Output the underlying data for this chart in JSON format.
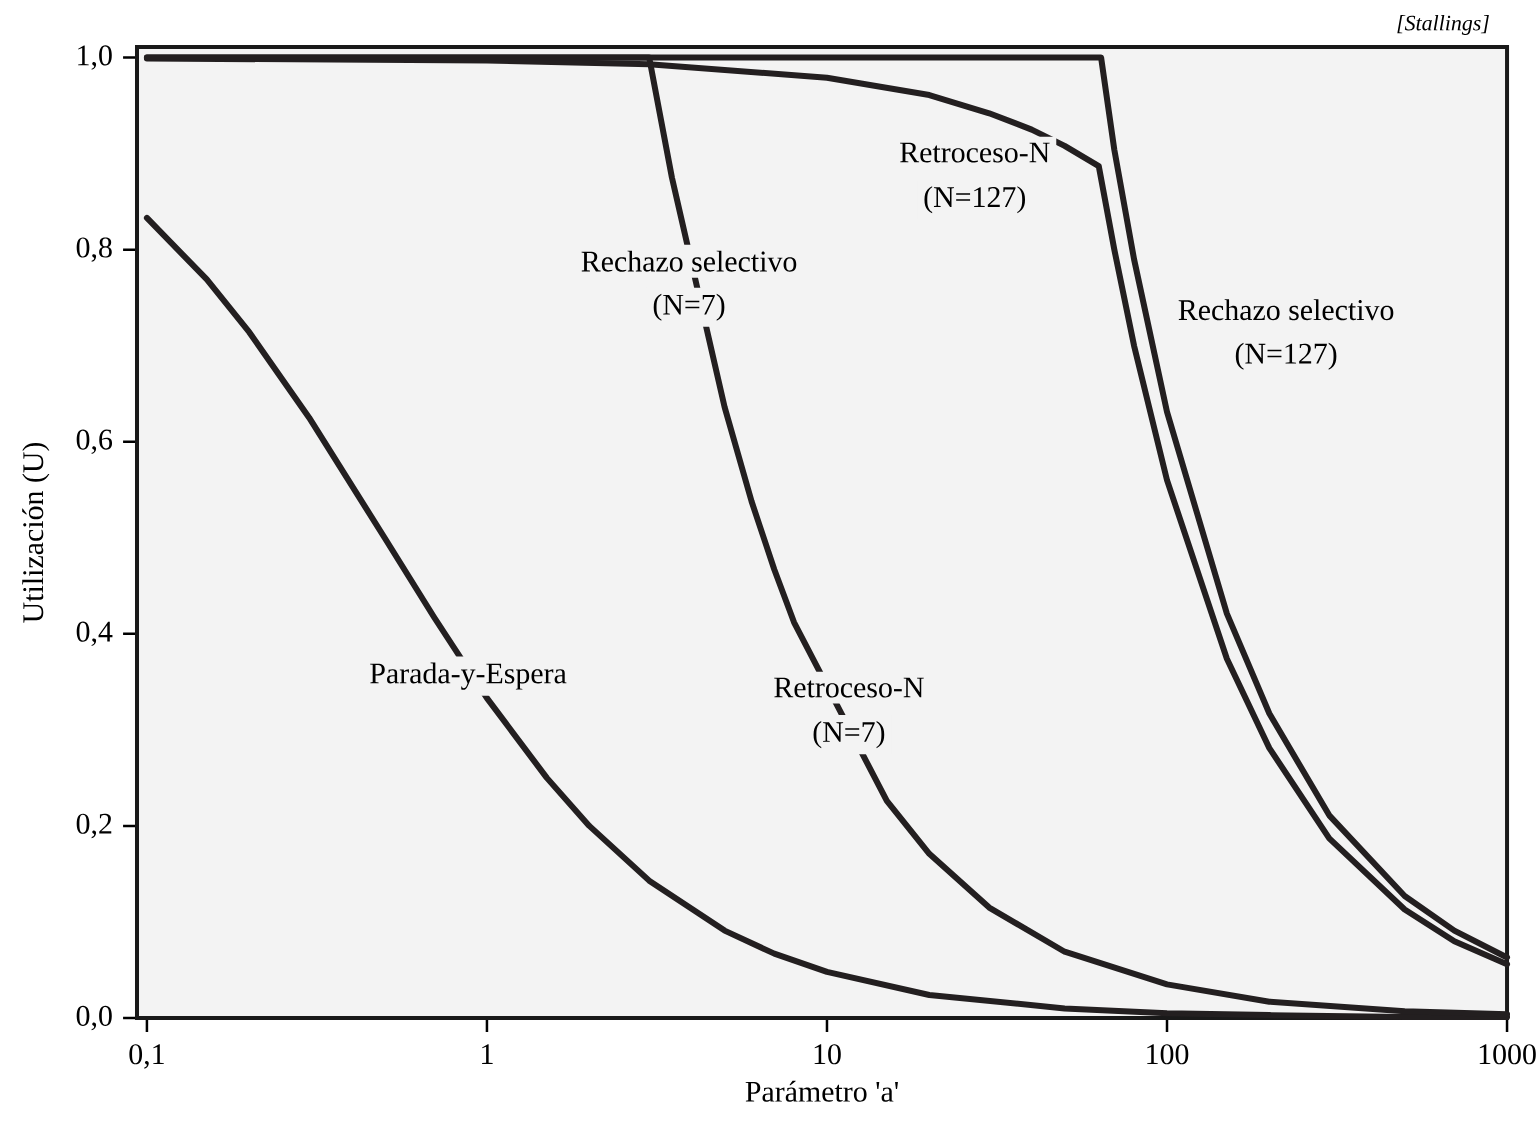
{
  "chart_data": {
    "type": "line",
    "xlabel": "Parámetro 'a'",
    "ylabel": "Utilización (U)",
    "log": "x",
    "xlim": [
      0.0935,
      1000
    ],
    "ylim": [
      0,
      1.011
    ],
    "xticks": [
      {
        "value": 0.1,
        "label": "0,1"
      },
      1,
      10,
      100,
      1000
    ],
    "yticks": [
      {
        "value": 0,
        "label": "0,0"
      },
      {
        "value": 0.2,
        "label": "0,2"
      },
      {
        "value": 0.4,
        "label": "0,4"
      },
      {
        "value": 0.6,
        "label": "0,6"
      },
      {
        "value": 0.8,
        "label": "0,8"
      },
      {
        "value": 1.0,
        "label": "1,0"
      }
    ],
    "grid": false,
    "marker": "none",
    "line_style": "solid",
    "series": [
      {
        "color": "#231f20",
        "x": [
          0.1,
          0.15,
          0.2,
          0.3,
          0.5,
          0.7,
          1,
          1.5,
          2,
          3,
          5,
          7,
          10,
          20,
          50,
          100,
          200,
          500,
          1000
        ],
        "values": [
          0.833,
          0.769,
          0.714,
          0.625,
          0.5,
          0.417,
          0.333,
          0.25,
          0.2,
          0.143,
          0.091,
          0.067,
          0.048,
          0.024,
          0.01,
          0.005,
          0.003,
          0.001,
          0.001
        ]
      },
      {
        "color": "#231f20",
        "x": [
          0.1,
          3,
          3.5,
          5,
          6,
          7,
          8,
          15,
          20,
          30,
          50,
          100,
          200,
          500,
          1000
        ],
        "values": [
          1,
          1,
          0.875,
          0.636,
          0.538,
          0.467,
          0.412,
          0.226,
          0.171,
          0.115,
          0.069,
          0.035,
          0.017,
          0.007,
          0.004
        ]
      },
      {
        "color": "#231f20",
        "x": [
          0.1,
          1,
          3,
          10,
          20,
          30,
          40,
          50,
          63,
          70,
          80,
          100,
          150,
          200,
          300,
          500,
          700,
          1000
        ],
        "values": [
          0.999,
          0.997,
          0.993,
          0.979,
          0.961,
          0.942,
          0.925,
          0.908,
          0.887,
          0.8,
          0.7,
          0.56,
          0.374,
          0.281,
          0.187,
          0.113,
          0.08,
          0.056
        ]
      },
      {
        "color": "#231f20",
        "x": [
          0.1,
          64,
          70,
          80,
          100,
          150,
          200,
          300,
          500,
          700,
          1000
        ],
        "values": [
          1,
          1,
          0.904,
          0.79,
          0.631,
          0.421,
          0.317,
          0.211,
          0.127,
          0.091,
          0.063
        ]
      }
    ],
    "annotations": [
      "Parada-y-Espera",
      "Rechazo selectivo",
      "(N=7)",
      "Retroceso-N",
      "(N=7)",
      "Retroceso-N",
      "(N=127)",
      "Rechazo selectivo",
      "(N=127)",
      "[Stallings]"
    ]
  }
}
